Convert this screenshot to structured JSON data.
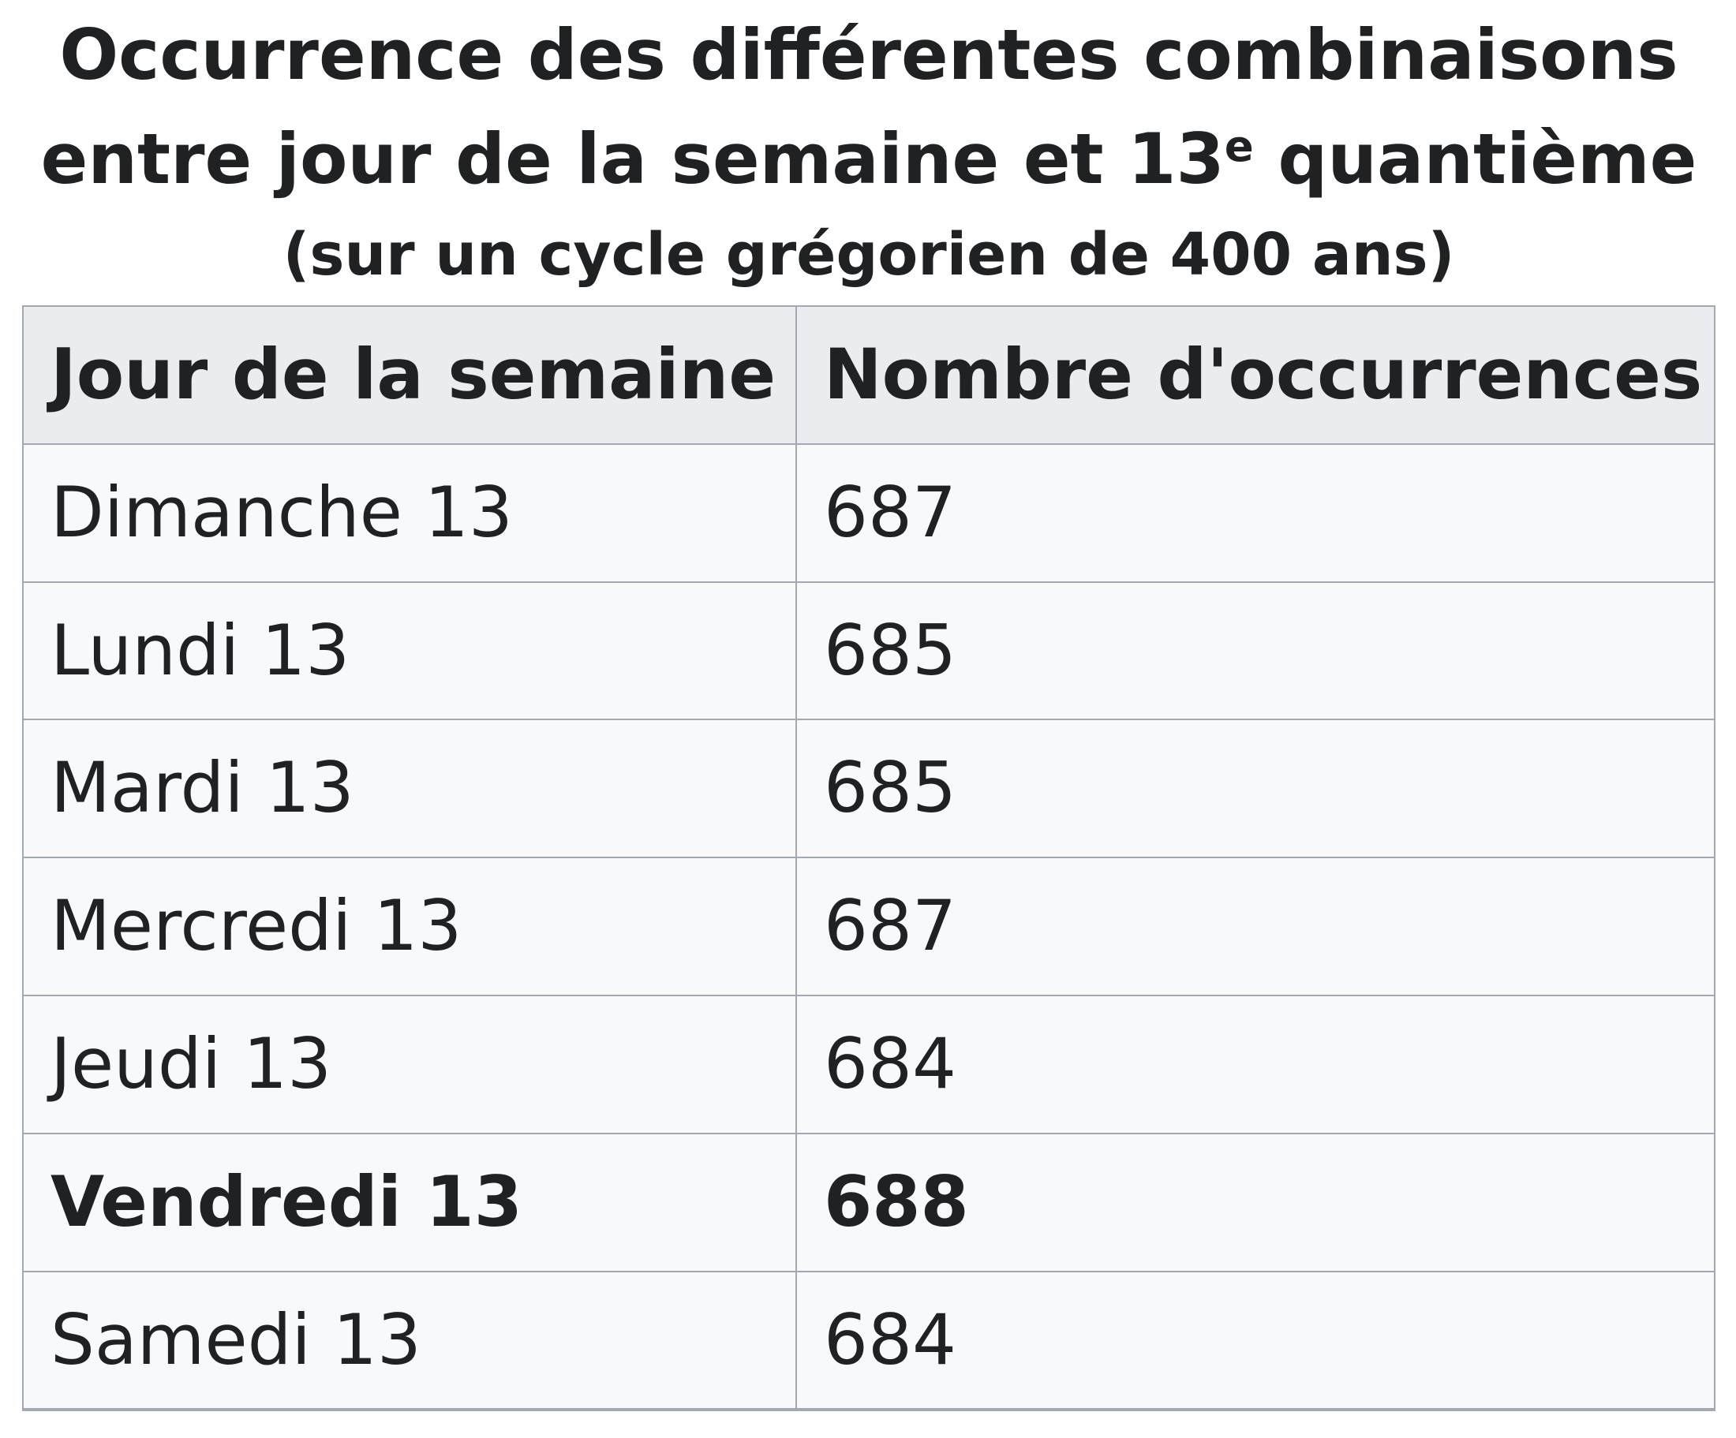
{
  "table": {
    "caption": {
      "line1": "Occurrence des différentes combinaisons",
      "line2_before_sup": "entre jour de la semaine et 13",
      "line2_sup": "e",
      "line2_after_sup": " quantième",
      "subtitle": "(sur un cycle grégorien de 400 ans)"
    },
    "columns": [
      "Jour de la semaine",
      "Nombre d'occurrences"
    ],
    "rows": [
      {
        "day": "Dimanche 13",
        "count": "687",
        "bold": false
      },
      {
        "day": "Lundi 13",
        "count": "685",
        "bold": false
      },
      {
        "day": "Mardi 13",
        "count": "685",
        "bold": false
      },
      {
        "day": "Mercredi 13",
        "count": "687",
        "bold": false
      },
      {
        "day": "Jeudi 13",
        "count": "684",
        "bold": false
      },
      {
        "day": "Vendredi 13",
        "count": "688",
        "bold": true
      },
      {
        "day": "Samedi 13",
        "count": "684",
        "bold": false
      }
    ],
    "colors": {
      "border": "#a2a9b1",
      "header_bg": "#eaecf0",
      "row_bg": "#f8f9fa",
      "text": "#202122"
    }
  },
  "chart_data": {
    "type": "table",
    "title": "Occurrence des différentes combinaisons entre jour de la semaine et 13e quantième",
    "subtitle": "(sur un cycle grégorien de 400 ans)",
    "columns": [
      "Jour de la semaine",
      "Nombre d'occurrences"
    ],
    "categories": [
      "Dimanche 13",
      "Lundi 13",
      "Mardi 13",
      "Mercredi 13",
      "Jeudi 13",
      "Vendredi 13",
      "Samedi 13"
    ],
    "values": [
      687,
      685,
      685,
      687,
      684,
      688,
      684
    ],
    "highlighted_category": "Vendredi 13",
    "layout": "caption above table, two columns, header row shaded, Vendredi row bold"
  }
}
